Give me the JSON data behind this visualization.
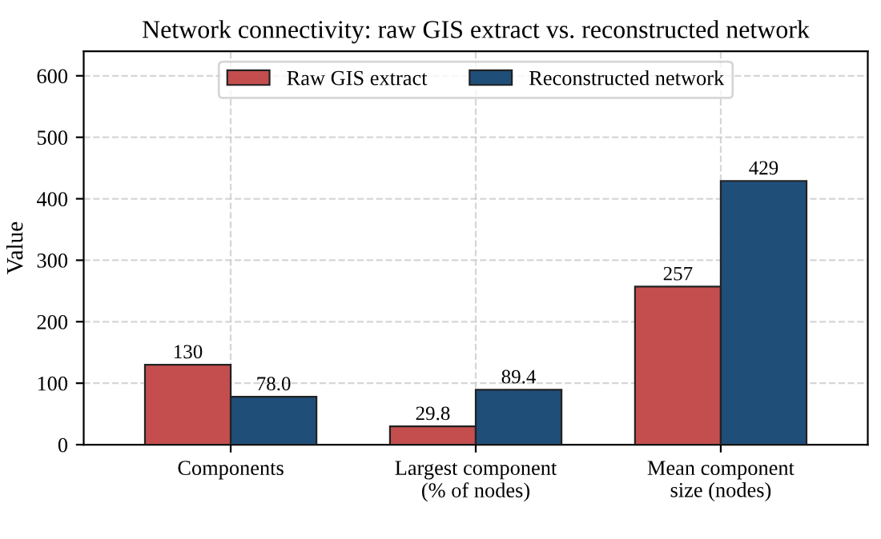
{
  "chart_data": {
    "type": "bar",
    "title": "Network connectivity: raw GIS extract vs. reconstructed network",
    "ylabel": "Value",
    "categories": [
      "Components",
      "Largest component\n(% of nodes)",
      "Mean component\nsize (nodes)"
    ],
    "series": [
      {
        "name": "Raw GIS extract",
        "color": "#c44e4e",
        "values": [
          130,
          29.8,
          257
        ],
        "value_labels": [
          "130",
          "29.8",
          "257"
        ]
      },
      {
        "name": "Reconstructed network",
        "color": "#1f4e79",
        "values": [
          78.0,
          89.4,
          429
        ],
        "value_labels": [
          "78.0",
          "89.4",
          "429"
        ]
      }
    ],
    "ylim": [
      0,
      640
    ],
    "yticks": [
      0,
      100,
      200,
      300,
      400,
      500,
      600
    ],
    "grid": true,
    "legend": "top"
  }
}
